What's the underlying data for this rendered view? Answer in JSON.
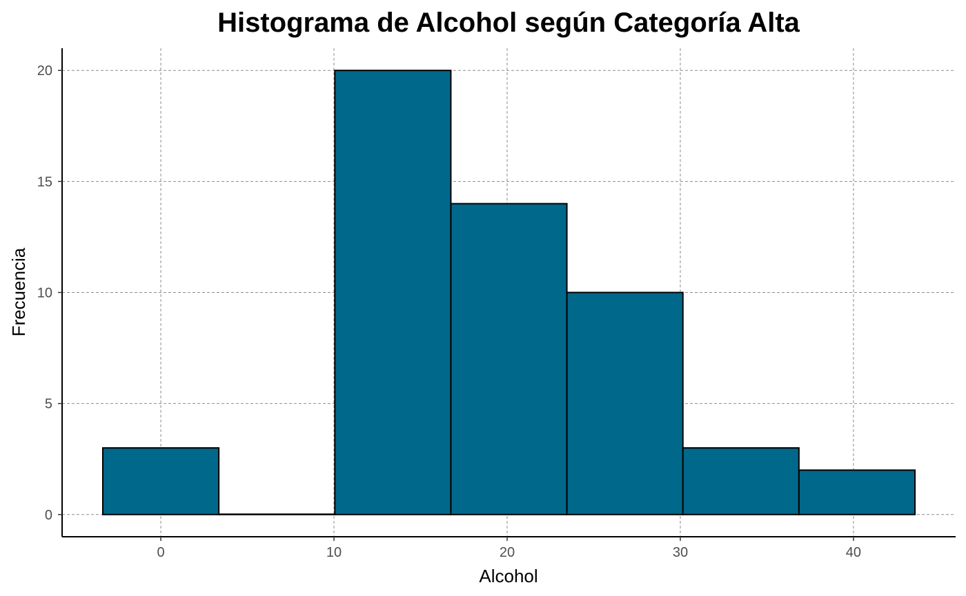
{
  "chart_data": {
    "type": "bar",
    "subtype": "histogram",
    "title": "Histograma de Alcohol según Categoría Alta",
    "xlabel": "Alcohol",
    "ylabel": "Frecuencia",
    "bin_width": 6.7,
    "bins": [
      {
        "x_start": -3.35,
        "x_end": 3.35,
        "count": 3
      },
      {
        "x_start": 3.35,
        "x_end": 10.05,
        "count": 0
      },
      {
        "x_start": 10.05,
        "x_end": 16.75,
        "count": 20
      },
      {
        "x_start": 16.75,
        "x_end": 23.45,
        "count": 14
      },
      {
        "x_start": 23.45,
        "x_end": 30.15,
        "count": 10
      },
      {
        "x_start": 30.15,
        "x_end": 36.85,
        "count": 3
      },
      {
        "x_start": 36.85,
        "x_end": 43.55,
        "count": 2
      }
    ],
    "xlim": [
      -5.7,
      45.9
    ],
    "ylim": [
      -1,
      21
    ],
    "x_ticks": [
      0,
      10,
      20,
      30,
      40
    ],
    "y_ticks": [
      0,
      5,
      10,
      15,
      20
    ],
    "grid": true,
    "colors": {
      "bar_fill": "#00688b",
      "bar_edge": "#000000",
      "grid": "#8c8c8c",
      "axis": "#000000"
    }
  }
}
